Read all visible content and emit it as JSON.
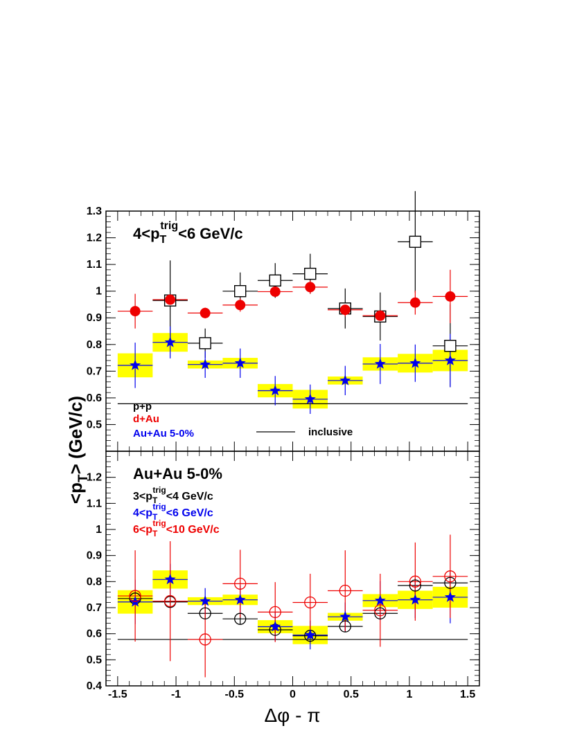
{
  "chart_data": [
    {
      "panel": "top",
      "type": "scatter",
      "title": "4<p_T^trig<6 GeV/c",
      "title_parts": {
        "pre": "4<p",
        "sub": "T",
        "sup": "trig",
        "post": "<6 GeV/c"
      },
      "ylim": [
        0.4,
        1.3
      ],
      "y_ticks": [
        "0.5",
        "0.6",
        "0.7",
        "0.8",
        "0.9",
        "1",
        "1.1",
        "1.2",
        "1.3"
      ],
      "inclusive_value": 0.578,
      "legend": [
        {
          "label": "p+p",
          "color": "#000000"
        },
        {
          "label": "d+Au",
          "color": "#ee0000"
        },
        {
          "label": "Au+Au 5-0%",
          "color": "#0000ee"
        }
      ],
      "line_label": "inclusive",
      "series": [
        {
          "name": "p+p",
          "marker": "open-square",
          "color": "#000000",
          "x": [
            -1.05,
            -0.75,
            -0.45,
            -0.15,
            0.15,
            0.45,
            0.75,
            1.05,
            1.35
          ],
          "y": [
            0.965,
            0.805,
            1.0,
            1.04,
            1.065,
            0.935,
            0.905,
            1.185,
            0.795
          ],
          "err": [
            0.15,
            0.055,
            0.07,
            0.065,
            0.075,
            0.075,
            0.09,
            0.19,
            0.155
          ]
        },
        {
          "name": "d+Au",
          "marker": "filled-circle",
          "color": "#ee0000",
          "x": [
            -1.35,
            -1.05,
            -0.75,
            -0.45,
            -0.15,
            0.15,
            0.45,
            0.75,
            1.05,
            1.35
          ],
          "y": [
            0.925,
            0.968,
            0.918,
            0.948,
            0.998,
            1.015,
            0.93,
            0.908,
            0.957,
            0.98
          ],
          "err": [
            0.065,
            0.015,
            0.02,
            0.025,
            0.015,
            0.025,
            0.025,
            0.015,
            0.045,
            0.1
          ]
        },
        {
          "name": "Au+Au 5-0%",
          "marker": "filled-star",
          "color": "#0000ee",
          "x": [
            -1.35,
            -1.05,
            -0.75,
            -0.45,
            -0.15,
            0.15,
            0.45,
            0.75,
            1.05,
            1.35
          ],
          "y": [
            0.722,
            0.808,
            0.725,
            0.73,
            0.627,
            0.595,
            0.665,
            0.727,
            0.73,
            0.74
          ],
          "err": [
            0.085,
            0.06,
            0.05,
            0.055,
            0.055,
            0.055,
            0.055,
            0.075,
            0.07,
            0.1
          ],
          "sys": [
            0.045,
            0.035,
            0.015,
            0.02,
            0.025,
            0.035,
            0.015,
            0.025,
            0.035,
            0.04
          ]
        }
      ]
    },
    {
      "panel": "bottom",
      "type": "scatter",
      "title": "Au+Au 5-0%",
      "ylim": [
        0.4,
        1.3
      ],
      "y_ticks": [
        "0.4",
        "0.5",
        "0.6",
        "0.7",
        "0.8",
        "0.9",
        "1",
        "1.1",
        "1.2"
      ],
      "inclusive_value": 0.578,
      "legend": [
        {
          "pre": "3<p",
          "sub": "T",
          "sup": "trig",
          "post": "<4 GeV/c",
          "color": "#000000"
        },
        {
          "pre": "4<p",
          "sub": "T",
          "sup": "trig",
          "post": "<6 GeV/c",
          "color": "#0000ee"
        },
        {
          "pre": "6<p",
          "sub": "T",
          "sup": "trig",
          "post": "<10 GeV/c",
          "color": "#ee0000"
        }
      ],
      "series": [
        {
          "name": "3<p_T^trig<4 GeV/c",
          "marker": "open-circle",
          "color": "#000000",
          "x": [
            -1.35,
            -1.05,
            -0.75,
            -0.45,
            -0.15,
            0.15,
            0.45,
            0.75,
            1.05,
            1.35
          ],
          "y": [
            0.735,
            0.722,
            0.678,
            0.657,
            0.615,
            0.592,
            0.628,
            0.678,
            0.785,
            0.795
          ],
          "err": [
            0.03,
            0.015,
            0.02,
            0.02,
            0.02,
            0.015,
            0.02,
            0.02,
            0.03,
            0.04
          ]
        },
        {
          "name": "4<p_T^trig<6 GeV/c",
          "marker": "filled-star",
          "color": "#0000ee",
          "x": [
            -1.35,
            -1.05,
            -0.75,
            -0.45,
            -0.15,
            0.15,
            0.45,
            0.75,
            1.05,
            1.35
          ],
          "y": [
            0.722,
            0.808,
            0.725,
            0.73,
            0.627,
            0.595,
            0.665,
            0.727,
            0.73,
            0.74
          ],
          "err": [
            0.085,
            0.06,
            0.05,
            0.055,
            0.055,
            0.055,
            0.055,
            0.075,
            0.07,
            0.1
          ],
          "sys": [
            0.045,
            0.035,
            0.015,
            0.02,
            0.025,
            0.035,
            0.015,
            0.025,
            0.035,
            0.04
          ]
        },
        {
          "name": "6<p_T^trig<10 GeV/c",
          "marker": "open-circle",
          "color": "#ee0000",
          "x": [
            -1.35,
            -1.05,
            -0.75,
            -0.45,
            -0.15,
            0.15,
            0.45,
            0.75,
            1.05,
            1.35
          ],
          "y": [
            0.745,
            0.725,
            0.578,
            0.792,
            0.683,
            0.72,
            0.765,
            0.69,
            0.8,
            0.82
          ],
          "err": [
            0.175,
            0.23,
            0.145,
            0.13,
            0.115,
            0.11,
            0.155,
            0.14,
            0.15,
            0.16
          ]
        }
      ]
    }
  ],
  "axes": {
    "xlim": [
      -1.6,
      1.6
    ],
    "x_ticks": [
      "-1.5",
      "-1",
      "-0.5",
      "0",
      "0.5",
      "1",
      "1.5"
    ],
    "xlabel": "Δφ - π",
    "ylabel": "<p_T> (GeV/c)",
    "ylabel_parts": {
      "pre": "<p",
      "sub": "T",
      "post": "> (GeV/c)"
    },
    "x_half_width": 0.15,
    "sys_box_color": "#ffff00"
  }
}
